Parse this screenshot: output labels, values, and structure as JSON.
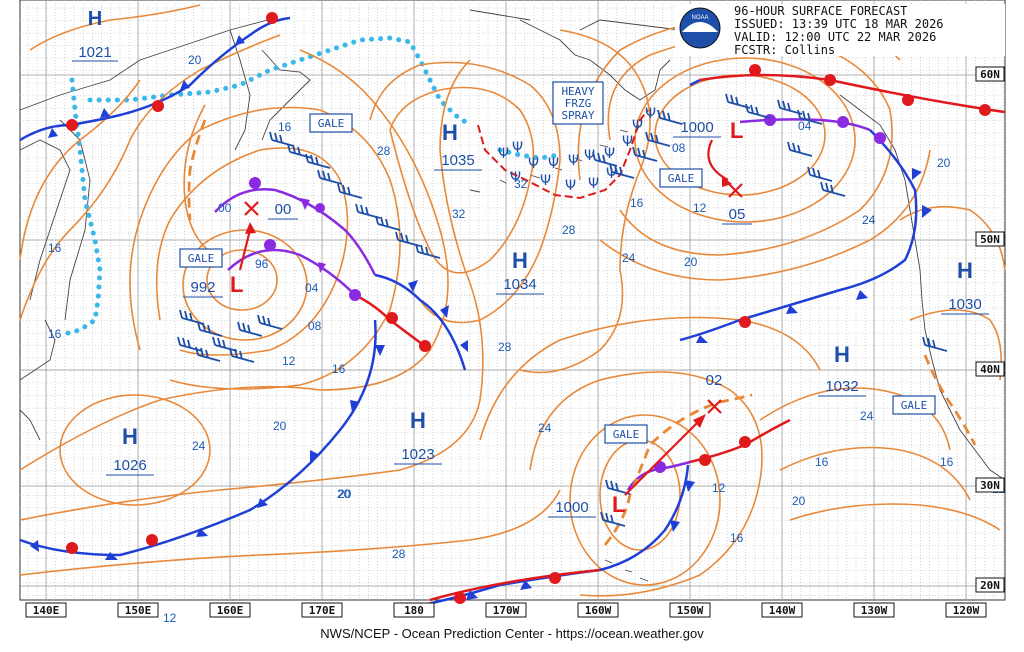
{
  "header": {
    "line1": "96-HOUR SURFACE FORECAST",
    "line2": "ISSUED: 13:39 UTC 18 MAR 2026",
    "line3": "VALID:  12:00 UTC 22 MAR 2026",
    "line4": "FCSTR:  Collins",
    "logo_text": "NOAA"
  },
  "footer": "NWS/NCEP - Ocean Prediction Center - https://ocean.weather.gov",
  "longitudes": [
    "140E",
    "150E",
    "160E",
    "170E",
    "180",
    "170W",
    "160W",
    "150W",
    "140W",
    "130W",
    "120W"
  ],
  "latitudes": [
    "60N",
    "50N",
    "40N",
    "30N",
    "20N"
  ],
  "pressure_centers": [
    {
      "type": "H",
      "value": "1021"
    },
    {
      "type": "H",
      "value": "1035"
    },
    {
      "type": "H",
      "value": "1034"
    },
    {
      "type": "H",
      "value": "1030"
    },
    {
      "type": "H",
      "value": "1032"
    },
    {
      "type": "H",
      "value": "1026"
    },
    {
      "type": "H",
      "value": "1023"
    },
    {
      "type": "L",
      "value": "992"
    },
    {
      "type": "L",
      "value": "1000"
    },
    {
      "type": "L",
      "value": "1000"
    }
  ],
  "forecast_positions": [
    "00",
    "05",
    "02"
  ],
  "warnings": [
    "GALE",
    "GALE",
    "GALE",
    "GALE",
    "GALE"
  ],
  "freezing_spray": [
    "HEAVY",
    "FRZG",
    "SPRAY"
  ],
  "isobar_labels": [
    "20",
    "16",
    "16",
    "16",
    "00",
    "96",
    "04",
    "08",
    "12",
    "16",
    "20",
    "20",
    "24",
    "28",
    "32",
    "32",
    "28",
    "24",
    "28",
    "20",
    "16",
    "12",
    "08",
    "04",
    "24",
    "20",
    "28",
    "24",
    "16",
    "12",
    "12",
    "20",
    "16",
    "16",
    "24",
    "28",
    "20",
    "12"
  ],
  "colors": {
    "isobar": "#e8893a",
    "cold_front": "#1f3fd6",
    "warm_front": "#e0191c",
    "occluded_front": "#8a2be2",
    "ice_edge": "#3ab8e8",
    "label_blue": "#1d4fa8"
  }
}
